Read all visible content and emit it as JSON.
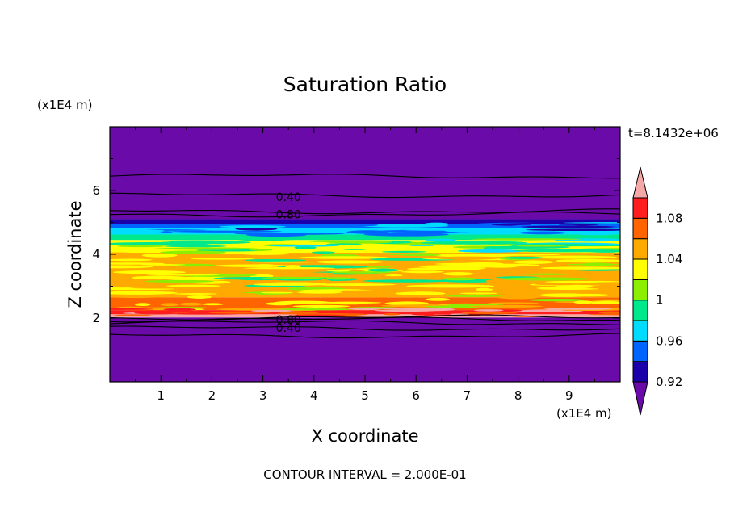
{
  "chart_data": {
    "type": "heatmap",
    "title": "Saturation Ratio",
    "xlabel": "X coordinate",
    "ylabel": "Z coordinate",
    "x_unit": "(x1E4 m)",
    "y_unit": "(x1E4 m)",
    "time_label": "t=8.1432e+06",
    "footer": "CONTOUR INTERVAL = 2.000E-01",
    "xlim": [
      0,
      10
    ],
    "ylim": [
      0,
      8
    ],
    "x_ticks": [
      1,
      2,
      3,
      4,
      5,
      6,
      7,
      8,
      9
    ],
    "y_ticks": [
      2,
      4,
      6
    ],
    "colorbar": {
      "levels": [
        0.92,
        0.94,
        0.96,
        0.98,
        1.0,
        1.02,
        1.04,
        1.06,
        1.08,
        1.1
      ],
      "tick_labels": [
        "0.92",
        "0.96",
        "1",
        "1.04",
        "1.08"
      ],
      "tick_values": [
        0.92,
        0.96,
        1.0,
        1.04,
        1.08
      ],
      "colors": [
        "#6a0aa8",
        "#1c00aa",
        "#0064ff",
        "#00dcff",
        "#00e88c",
        "#8cee00",
        "#ffff00",
        "#ffaa00",
        "#ff6400",
        "#ff1e1e",
        "#f4a8a8"
      ]
    },
    "contour_labels": [
      {
        "text": "0.40",
        "x": 3.5,
        "y": 5.8
      },
      {
        "text": "0.80",
        "x": 3.5,
        "y": 5.25
      },
      {
        "text": "0.80",
        "x": 3.5,
        "y": 1.95
      },
      {
        "text": "0.40",
        "x": 3.5,
        "y": 1.7
      }
    ],
    "contour_lines_z": [
      6.45,
      5.85,
      5.35,
      5.25,
      2.02,
      1.95,
      1.85,
      1.68,
      1.45
    ],
    "bands": [
      {
        "z0": 0.0,
        "z1": 2.02,
        "value": 0.9
      },
      {
        "z0": 2.02,
        "z1": 2.12,
        "value": 1.1
      },
      {
        "z0": 2.12,
        "z1": 2.25,
        "value": 1.09
      },
      {
        "z0": 2.25,
        "z1": 2.45,
        "value": 1.07
      },
      {
        "z0": 2.45,
        "z1": 2.65,
        "value": 1.06
      },
      {
        "z0": 2.65,
        "z1": 3.0,
        "value": 1.05
      },
      {
        "z0": 3.0,
        "z1": 4.05,
        "value": 1.04
      },
      {
        "z0": 4.05,
        "z1": 4.45,
        "value": 1.02
      },
      {
        "z0": 4.45,
        "z1": 4.62,
        "value": 0.99
      },
      {
        "z0": 4.62,
        "z1": 4.82,
        "value": 0.97
      },
      {
        "z0": 4.82,
        "z1": 4.95,
        "value": 0.95
      },
      {
        "z0": 4.95,
        "z1": 5.1,
        "value": 0.93
      },
      {
        "z0": 5.1,
        "z1": 8.0,
        "value": 0.9
      }
    ]
  }
}
